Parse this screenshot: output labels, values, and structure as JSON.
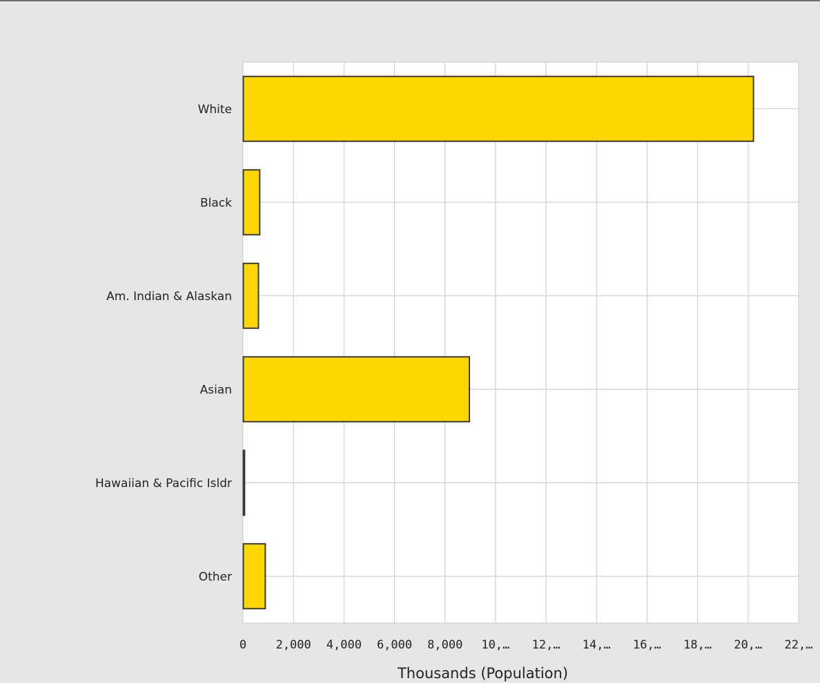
{
  "chart_data": {
    "type": "bar",
    "orientation": "horizontal",
    "categories": [
      "White",
      "Black",
      "Am. Indian & Alaskan",
      "Asian",
      "Hawaiian & Pacific Isldr",
      "Other"
    ],
    "values": [
      20200,
      650,
      600,
      8950,
      50,
      870
    ],
    "xlabel": "Thousands (Population)",
    "ylabel": "",
    "xlim": [
      0,
      22000
    ],
    "x_ticks": [
      0,
      2000,
      4000,
      6000,
      8000,
      10000,
      12000,
      14000,
      16000,
      18000,
      20000,
      22000
    ],
    "x_tick_labels": [
      "0",
      "2,000",
      "4,000",
      "6,000",
      "8,000",
      "10,…",
      "12,…",
      "14,…",
      "16,…",
      "18,…",
      "20,…",
      "22,…"
    ],
    "grid": true,
    "colors": {
      "bar_fill": "#ffd700",
      "bar_stroke": "#3a3a3a",
      "grid": "#c8c8c8",
      "plot_bg": "#ffffff",
      "page_bg": "#e6e6e6"
    }
  }
}
